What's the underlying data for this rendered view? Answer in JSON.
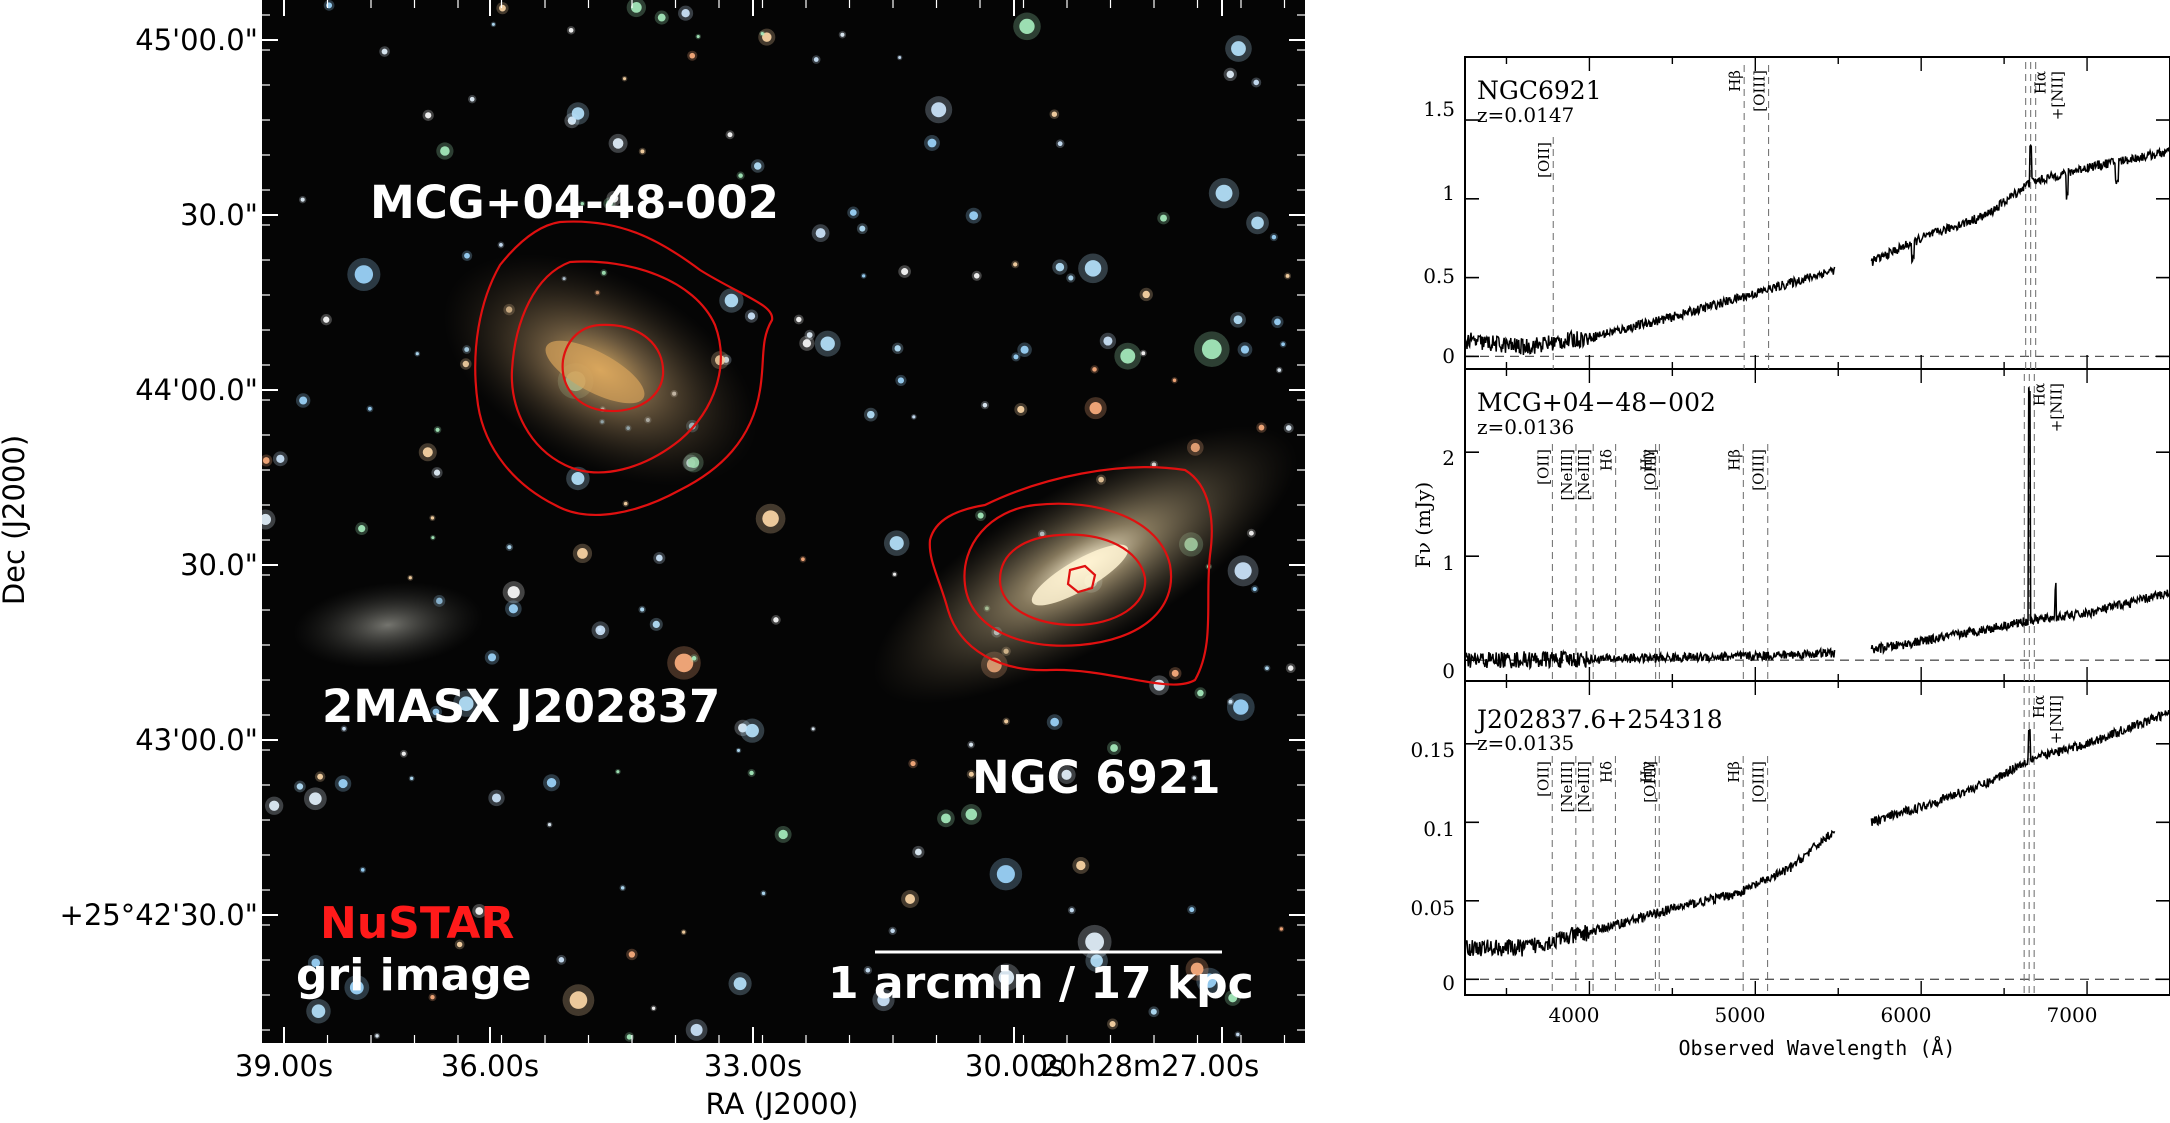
{
  "colors": {
    "contour": "#e01010",
    "sky": "#050505",
    "nustar_label": "#ff1a1a",
    "white_label": "#ffffff"
  },
  "chart_data": [
    {
      "type": "scatter",
      "title": "",
      "xlabel": "RA (J2000)",
      "ylabel": "Dec (J2000)",
      "x_ticks": [
        "39.00s",
        "36.00s",
        "33.00s",
        "30.00s",
        "20h28m27.00s"
      ],
      "y_ticks": [
        "45'00.0\"",
        "30.0\"",
        "44'00.0\"",
        "30.0\"",
        "43'00.0\"",
        "+25°42'30.0\""
      ],
      "legend": [
        {
          "text": "NuSTAR",
          "color": "#ff1a1a"
        },
        {
          "text": "gri image",
          "color": "#ffffff"
        }
      ],
      "scale_bar": "1 arcmin / 17 kpc",
      "sources": [
        {
          "name": "MCG+04-48-002",
          "contours": 3
        },
        {
          "name": "NGC 6921",
          "contours": 4
        },
        {
          "name": "2MASX J202837",
          "contours": 0
        }
      ]
    },
    {
      "type": "line",
      "xlabel": "Observed Wavelength (Å)",
      "ylabel": "Fν (mJy)",
      "xlim": [
        3250,
        7500
      ],
      "x_ticks": [
        4000,
        5000,
        6000,
        7000
      ],
      "panels": [
        {
          "name": "NGC6921",
          "z": "z=0.0147",
          "ylim": [
            -0.08,
            1.9
          ],
          "y_ticks": [
            "0",
            "0.5",
            "1",
            "1.5"
          ],
          "lines": [
            {
              "label": "[OII]",
              "wavelength": 3782
            },
            {
              "label": "Hβ",
              "wavelength": 4933
            },
            {
              "label": "[OIII]",
              "wavelength": 5080
            },
            {
              "label": "Hα +[NII]",
              "wavelength": 6660
            }
          ],
          "spectrum_anchor": [
            [
              3250,
              0.1
            ],
            [
              3600,
              0.06
            ],
            [
              4000,
              0.12
            ],
            [
              4500,
              0.25
            ],
            [
              5000,
              0.4
            ],
            [
              5480,
              0.55
            ],
            [
              5700,
              0.6
            ],
            [
              6000,
              0.75
            ],
            [
              6400,
              0.9
            ],
            [
              6650,
              1.1
            ],
            [
              7000,
              1.2
            ],
            [
              7500,
              1.3
            ]
          ]
        },
        {
          "name": "MCG+04−48−002",
          "z": "z=0.0136",
          "ylim": [
            -0.2,
            2.8
          ],
          "y_ticks": [
            "0",
            "1",
            "2"
          ],
          "lines": [
            {
              "label": "[OII]",
              "wavelength": 3777
            },
            {
              "label": "[NeIII]",
              "wavelength": 3919
            },
            {
              "label": "[NeIII]",
              "wavelength": 4023
            },
            {
              "label": "Hδ",
              "wavelength": 4158
            },
            {
              "label": "Hγ",
              "wavelength": 4399
            },
            {
              "label": "[OIII]",
              "wavelength": 4422
            },
            {
              "label": "Hβ",
              "wavelength": 4928
            },
            {
              "label": "[OIII]",
              "wavelength": 5075
            },
            {
              "label": "Hα +[NII]",
              "wavelength": 6652
            }
          ],
          "spectrum_anchor": [
            [
              3250,
              0.0
            ],
            [
              4000,
              0.01
            ],
            [
              5000,
              0.04
            ],
            [
              5480,
              0.07
            ],
            [
              5700,
              0.1
            ],
            [
              6000,
              0.18
            ],
            [
              6400,
              0.3
            ],
            [
              6650,
              0.38
            ],
            [
              7000,
              0.45
            ],
            [
              7500,
              0.65
            ]
          ]
        },
        {
          "name": "J202837.6+254318",
          "z": "z=0.0135",
          "ylim": [
            -0.01,
            0.19
          ],
          "y_ticks": [
            "0",
            "0.05",
            "0.1",
            "0.15"
          ],
          "lines": [
            {
              "label": "[OII]",
              "wavelength": 3776
            },
            {
              "label": "[NeIII]",
              "wavelength": 3918
            },
            {
              "label": "[NeIII]",
              "wavelength": 4022
            },
            {
              "label": "Hδ",
              "wavelength": 4157
            },
            {
              "label": "Hγ",
              "wavelength": 4398
            },
            {
              "label": "[OIII]",
              "wavelength": 4421
            },
            {
              "label": "Hβ",
              "wavelength": 4927
            },
            {
              "label": "[OIII]",
              "wavelength": 5074
            },
            {
              "label": "Hα +[NII]",
              "wavelength": 6651
            }
          ],
          "spectrum_anchor": [
            [
              3250,
              0.02
            ],
            [
              3600,
              0.02
            ],
            [
              4000,
              0.03
            ],
            [
              4500,
              0.045
            ],
            [
              4900,
              0.055
            ],
            [
              5200,
              0.07
            ],
            [
              5480,
              0.095
            ],
            [
              5700,
              0.1
            ],
            [
              6000,
              0.11
            ],
            [
              6400,
              0.125
            ],
            [
              6650,
              0.14
            ],
            [
              7000,
              0.15
            ],
            [
              7500,
              0.17
            ]
          ]
        }
      ]
    }
  ]
}
